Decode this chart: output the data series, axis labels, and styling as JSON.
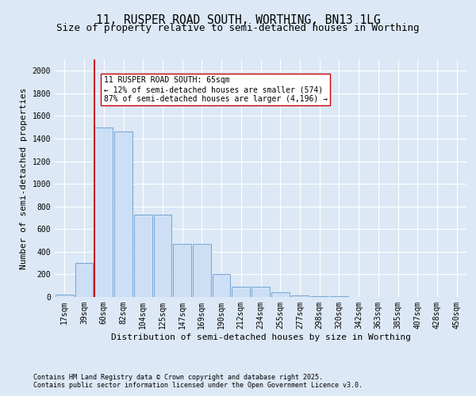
{
  "title_line1": "11, RUSPER ROAD SOUTH, WORTHING, BN13 1LG",
  "title_line2": "Size of property relative to semi-detached houses in Worthing",
  "xlabel": "Distribution of semi-detached houses by size in Worthing",
  "ylabel": "Number of semi-detached properties",
  "categories": [
    "17sqm",
    "39sqm",
    "60sqm",
    "82sqm",
    "104sqm",
    "125sqm",
    "147sqm",
    "169sqm",
    "190sqm",
    "212sqm",
    "234sqm",
    "255sqm",
    "277sqm",
    "298sqm",
    "320sqm",
    "342sqm",
    "363sqm",
    "385sqm",
    "407sqm",
    "428sqm",
    "450sqm"
  ],
  "values": [
    20,
    300,
    1500,
    1460,
    730,
    730,
    470,
    470,
    200,
    90,
    90,
    40,
    15,
    8,
    4,
    3,
    2,
    1,
    1,
    1,
    1
  ],
  "bar_color": "#ccdff5",
  "bar_edge_color": "#6699cc",
  "vline_x_index": 2,
  "vline_color": "#cc0000",
  "annotation_text": "11 RUSPER ROAD SOUTH: 65sqm\n← 12% of semi-detached houses are smaller (574)\n87% of semi-detached houses are larger (4,196) →",
  "annotation_box_color": "#ffffff",
  "annotation_box_edge": "#cc0000",
  "ylim": [
    0,
    2100
  ],
  "yticks": [
    0,
    200,
    400,
    600,
    800,
    1000,
    1200,
    1400,
    1600,
    1800,
    2000
  ],
  "footer_line1": "Contains HM Land Registry data © Crown copyright and database right 2025.",
  "footer_line2": "Contains public sector information licensed under the Open Government Licence v3.0.",
  "background_color": "#dce8f5",
  "plot_background_color": "#dce8f5",
  "grid_color": "#ffffff",
  "title_fontsize": 10.5,
  "subtitle_fontsize": 9,
  "axis_label_fontsize": 8,
  "tick_fontsize": 7,
  "footer_fontsize": 6,
  "annotation_fontsize": 7
}
